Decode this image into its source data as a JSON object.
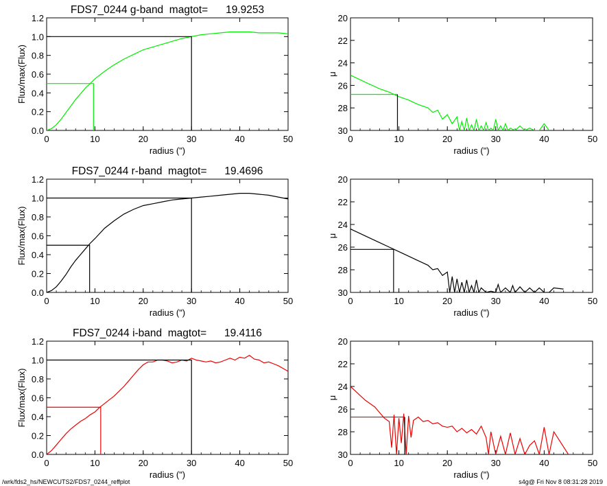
{
  "footer": {
    "path": "/wrk/fds2_hs/NEWCUTS2/FDS7_0244_reffplot",
    "stamp": "s4g@  Fri Nov  8 08:31:28 2019"
  },
  "chart_data": [
    {
      "type": "line",
      "band": "g",
      "title": "FDS7_0244 g-band  magtot=      19.9253",
      "xlabel": "radius (\")",
      "ylabel": "Flux/max(Flux)",
      "xlim": [
        0,
        50
      ],
      "ylim": [
        0,
        1.2
      ],
      "xticks": [
        0,
        10,
        20,
        30,
        40,
        50
      ],
      "yticks": [
        "0.0",
        "0.2",
        "0.4",
        "0.6",
        "0.8",
        "1.0",
        "1.2"
      ],
      "color": "#00ee00",
      "series": [
        {
          "x": [
            0,
            1,
            2,
            3,
            4,
            5,
            6,
            7,
            8,
            9,
            10,
            12,
            14,
            16,
            18,
            20,
            22,
            24,
            26,
            28,
            30,
            32,
            34,
            36,
            38,
            40,
            42,
            44,
            46,
            48,
            50
          ],
          "y": [
            0,
            0.02,
            0.06,
            0.12,
            0.19,
            0.26,
            0.33,
            0.39,
            0.45,
            0.5,
            0.55,
            0.63,
            0.7,
            0.76,
            0.81,
            0.86,
            0.89,
            0.92,
            0.95,
            0.98,
            1.0,
            1.02,
            1.03,
            1.04,
            1.05,
            1.05,
            1.05,
            1.04,
            1.04,
            1.04,
            1.03
          ]
        }
      ],
      "ref_half": {
        "x": 9.7,
        "y": 0.5
      },
      "ref_total": {
        "x": 30,
        "y": 1.0
      }
    },
    {
      "type": "line",
      "band": "g",
      "title": "",
      "xlabel": "radius (\")",
      "ylabel": "μ",
      "xlim": [
        0,
        50
      ],
      "ylim": [
        30,
        20
      ],
      "xticks": [
        0,
        10,
        20,
        30,
        40,
        50
      ],
      "yticks": [
        "20",
        "22",
        "24",
        "26",
        "28",
        "30"
      ],
      "color": "#00ee00",
      "series": [
        {
          "x": [
            0,
            2,
            4,
            6,
            8,
            10,
            12,
            14,
            16,
            17,
            18,
            19,
            20,
            21,
            22,
            22.5,
            23,
            23.5,
            24,
            24.5,
            25,
            25.5,
            26,
            26.5,
            27,
            27.5,
            28,
            28.5,
            29,
            29.5,
            30,
            30.5,
            31,
            31.5,
            32,
            32.5,
            33,
            34,
            35,
            36,
            37,
            38,
            39,
            40,
            41
          ],
          "y": [
            25.1,
            25.5,
            25.9,
            26.3,
            26.6,
            27.0,
            27.3,
            27.7,
            28.0,
            28.4,
            28.2,
            29.0,
            28.6,
            29.4,
            28.8,
            30,
            29.2,
            30,
            28.9,
            30,
            29.5,
            30,
            29.0,
            30,
            29.6,
            30,
            29.3,
            30,
            29.8,
            30,
            29.0,
            30,
            29.6,
            30,
            29.4,
            30,
            29.8,
            30,
            29.6,
            30,
            29.8,
            30,
            30,
            29.4,
            30
          ]
        }
      ],
      "ref_x": 9.7,
      "ref_y": 26.8
    },
    {
      "type": "line",
      "band": "r",
      "title": "FDS7_0244 r-band  magtot=      19.4696",
      "xlabel": "radius (\")",
      "ylabel": "Flux/max(Flux)",
      "xlim": [
        0,
        50
      ],
      "ylim": [
        0,
        1.2
      ],
      "xticks": [
        0,
        10,
        20,
        30,
        40,
        50
      ],
      "yticks": [
        "0.0",
        "0.2",
        "0.4",
        "0.6",
        "0.8",
        "1.0",
        "1.2"
      ],
      "color": "#000000",
      "series": [
        {
          "x": [
            0,
            1,
            2,
            3,
            4,
            5,
            6,
            7,
            8,
            9,
            10,
            12,
            14,
            16,
            18,
            20,
            22,
            24,
            26,
            28,
            30,
            32,
            34,
            36,
            38,
            40,
            42,
            44,
            46,
            48,
            50
          ],
          "y": [
            0,
            0.02,
            0.06,
            0.12,
            0.19,
            0.27,
            0.34,
            0.4,
            0.46,
            0.52,
            0.57,
            0.68,
            0.76,
            0.83,
            0.88,
            0.92,
            0.94,
            0.96,
            0.98,
            0.99,
            1.0,
            1.01,
            1.02,
            1.03,
            1.04,
            1.05,
            1.05,
            1.04,
            1.03,
            1.01,
            0.99
          ]
        }
      ],
      "ref_half": {
        "x": 8.9,
        "y": 0.5
      },
      "ref_total": {
        "x": 30,
        "y": 1.0
      }
    },
    {
      "type": "line",
      "band": "r",
      "title": "",
      "xlabel": "radius (\")",
      "ylabel": "μ",
      "xlim": [
        0,
        50
      ],
      "ylim": [
        30,
        20
      ],
      "xticks": [
        0,
        10,
        20,
        30,
        40,
        50
      ],
      "yticks": [
        "20",
        "22",
        "24",
        "26",
        "28",
        "30"
      ],
      "color": "#000000",
      "series": [
        {
          "x": [
            0,
            2,
            4,
            6,
            8,
            10,
            12,
            14,
            16,
            17,
            18,
            19,
            20,
            20.5,
            21,
            21.5,
            22,
            22.5,
            23,
            23.5,
            24,
            24.5,
            25,
            25.5,
            26,
            26.5,
            27,
            28,
            29,
            30,
            30.5,
            31,
            32,
            33,
            33.5,
            34,
            35,
            36,
            37,
            38,
            39,
            40,
            41,
            42,
            44
          ],
          "y": [
            24.4,
            24.8,
            25.2,
            25.6,
            26.0,
            26.4,
            26.8,
            27.2,
            27.6,
            28.0,
            27.9,
            28.5,
            28.2,
            30,
            28.6,
            30,
            28.8,
            30,
            29.1,
            30,
            28.9,
            30,
            29.4,
            30,
            28.9,
            30,
            29.6,
            30,
            29.9,
            30,
            29.3,
            30,
            29.6,
            30,
            29.4,
            30,
            29.5,
            30,
            29.6,
            30,
            29.6,
            30,
            30,
            29.6,
            29.7
          ]
        }
      ],
      "ref_x": 8.9,
      "ref_y": 26.2
    },
    {
      "type": "line",
      "band": "i",
      "title": "FDS7_0244 i-band  magtot=      19.4116",
      "xlabel": "radius (\")",
      "ylabel": "Flux/max(Flux)",
      "xlim": [
        0,
        50
      ],
      "ylim": [
        0,
        1.2
      ],
      "xticks": [
        0,
        10,
        20,
        30,
        40,
        50
      ],
      "yticks": [
        "0.0",
        "0.2",
        "0.4",
        "0.6",
        "0.8",
        "1.0",
        "1.2"
      ],
      "color": "#ee0000",
      "series": [
        {
          "x": [
            0,
            1,
            2,
            3,
            4,
            5,
            6,
            7,
            8,
            9,
            10,
            11,
            12,
            13,
            14,
            15,
            16,
            17,
            18,
            19,
            20,
            21,
            22,
            23,
            24,
            25,
            26,
            27,
            28,
            29,
            30,
            31,
            32,
            33,
            34,
            35,
            36,
            37,
            38,
            39,
            40,
            41,
            42,
            43,
            44,
            45,
            46,
            47,
            48,
            49,
            50
          ],
          "y": [
            0,
            0.04,
            0.1,
            0.16,
            0.22,
            0.27,
            0.31,
            0.35,
            0.38,
            0.42,
            0.45,
            0.5,
            0.54,
            0.58,
            0.62,
            0.67,
            0.72,
            0.78,
            0.84,
            0.9,
            0.95,
            0.98,
            0.98,
            1.0,
            1.0,
            0.99,
            0.97,
            0.98,
            1.0,
            0.99,
            1.02,
            1.0,
            0.99,
            0.98,
            0.99,
            0.97,
            0.98,
            1.0,
            1.02,
            1.0,
            1.03,
            1.02,
            1.05,
            1.01,
            1.0,
            0.97,
            0.98,
            0.96,
            0.94,
            0.91,
            0.88
          ]
        }
      ],
      "ref_half": {
        "x": 11.2,
        "y": 0.5
      },
      "ref_total": {
        "x": 30,
        "y": 1.0
      }
    },
    {
      "type": "line",
      "band": "i",
      "title": "",
      "xlabel": "radius (\")",
      "ylabel": "μ",
      "xlim": [
        0,
        50
      ],
      "ylim": [
        30,
        20
      ],
      "xticks": [
        0,
        10,
        20,
        30,
        40,
        50
      ],
      "yticks": [
        "20",
        "22",
        "24",
        "26",
        "28",
        "30"
      ],
      "color": "#ee0000",
      "series": [
        {
          "x": [
            0,
            1,
            2,
            3,
            4,
            5,
            6,
            7,
            8,
            8.5,
            9,
            9.5,
            10,
            10.5,
            11,
            11.5,
            12,
            12.5,
            13,
            14,
            15,
            16,
            17,
            18,
            19,
            20,
            21,
            22,
            23,
            24,
            25,
            26,
            27,
            28,
            28.5,
            29,
            30,
            31,
            32,
            33,
            34,
            35,
            36,
            37,
            38,
            39,
            40,
            41,
            42,
            45,
            46
          ],
          "y": [
            24.0,
            24.4,
            24.8,
            25.2,
            25.5,
            25.8,
            26.3,
            26.8,
            27.1,
            29.4,
            26.5,
            30,
            26.8,
            29.0,
            26.4,
            30,
            26.6,
            28.5,
            27.0,
            26.7,
            27.1,
            27.0,
            27.3,
            27.2,
            27.5,
            27.6,
            27.5,
            28.0,
            27.7,
            28.1,
            27.8,
            28.2,
            27.5,
            28.5,
            30,
            28.0,
            30,
            28.4,
            30,
            28.1,
            30,
            28.6,
            30,
            29.2,
            28.8,
            30,
            27.6,
            30,
            28.0,
            30,
            30
          ]
        }
      ],
      "ref_x": 11.2,
      "ref_y": 26.7
    }
  ]
}
